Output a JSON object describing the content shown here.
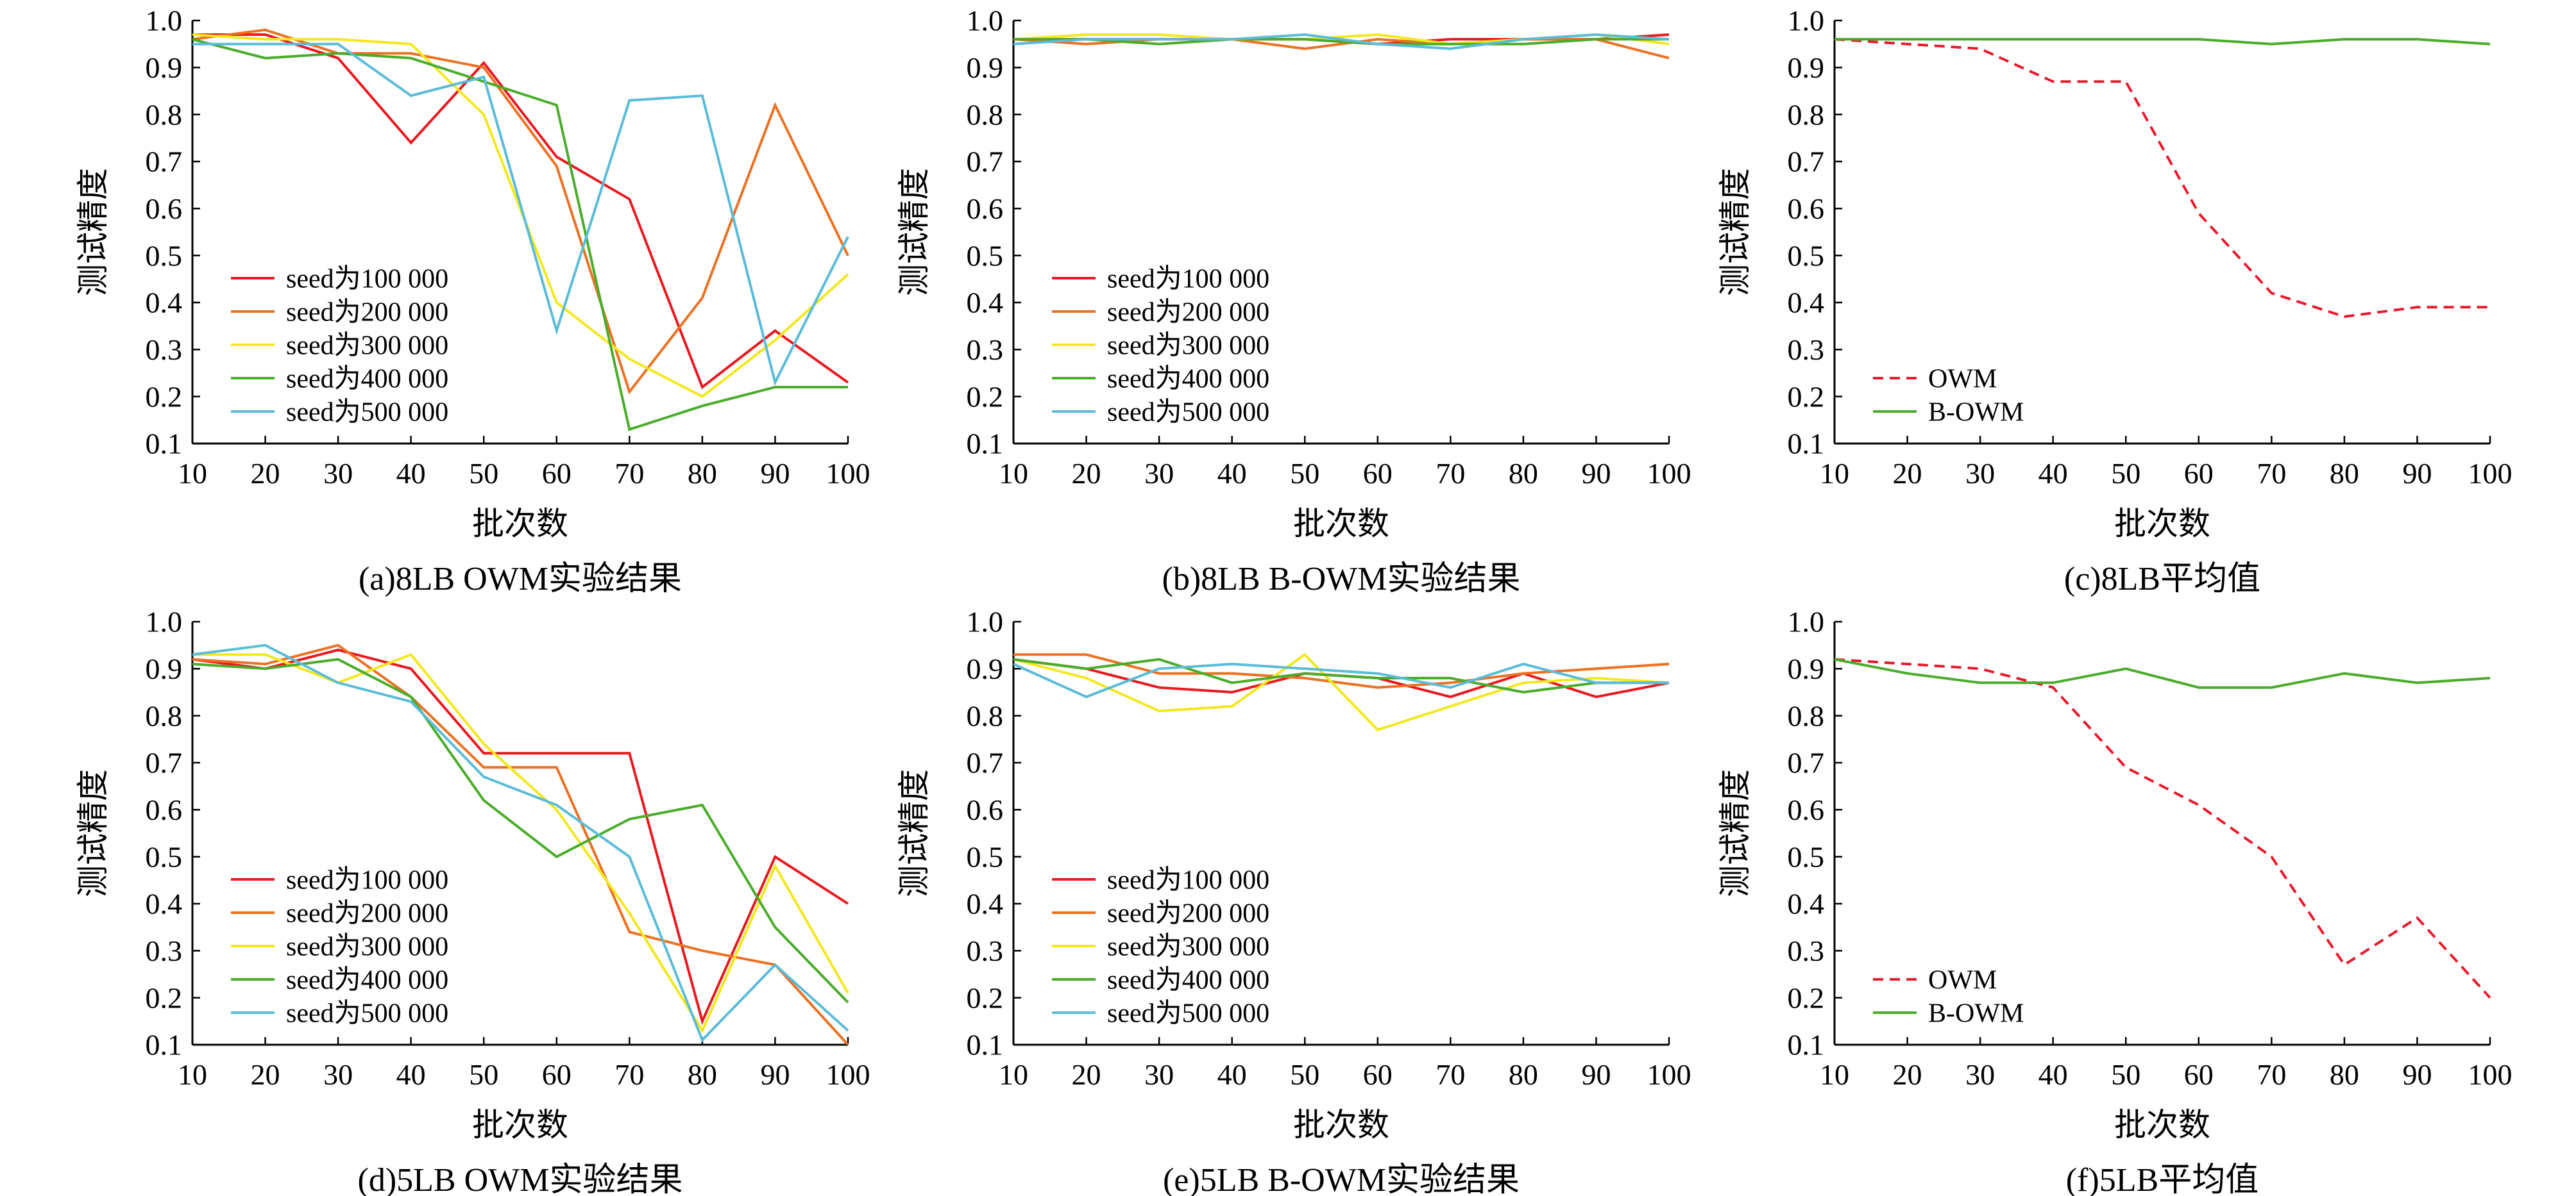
{
  "figure": {
    "y_axis_label": "测试精度",
    "x_axis_label": "批次数"
  },
  "colors": {
    "seed100": "#e8191f",
    "seed200": "#ec7122",
    "seed300": "#f3e81e",
    "seed400": "#4aac2b",
    "seed500": "#5bbcd8",
    "owm": "#e8192c",
    "bowm": "#4aac2b"
  },
  "chart_data": [
    {
      "id": "a",
      "type": "line",
      "caption": "(a)8LB OWM实验结果",
      "xlabel": "批次数",
      "ylabel": "测试精度",
      "x": [
        10,
        20,
        30,
        40,
        50,
        60,
        70,
        80,
        90,
        100
      ],
      "xlim": [
        10,
        100
      ],
      "ylim": [
        0.1,
        1.0
      ],
      "legend_position": "lower-left",
      "series": [
        {
          "name": "seed为100 000",
          "color_key": "seed100",
          "dashed": false,
          "values": [
            0.97,
            0.97,
            0.92,
            0.74,
            0.91,
            0.71,
            0.62,
            0.22,
            0.34,
            0.23
          ]
        },
        {
          "name": "seed为200 000",
          "color_key": "seed200",
          "dashed": false,
          "values": [
            0.96,
            0.98,
            0.93,
            0.93,
            0.9,
            0.69,
            0.21,
            0.41,
            0.82,
            0.5
          ]
        },
        {
          "name": "seed为300 000",
          "color_key": "seed300",
          "dashed": false,
          "values": [
            0.97,
            0.96,
            0.96,
            0.95,
            0.8,
            0.4,
            0.28,
            0.2,
            0.32,
            0.46
          ]
        },
        {
          "name": "seed为400 000",
          "color_key": "seed400",
          "dashed": false,
          "values": [
            0.96,
            0.92,
            0.93,
            0.92,
            0.87,
            0.82,
            0.13,
            0.18,
            0.22,
            0.22
          ]
        },
        {
          "name": "seed为500 000",
          "color_key": "seed500",
          "dashed": false,
          "values": [
            0.95,
            0.95,
            0.95,
            0.84,
            0.88,
            0.34,
            0.83,
            0.84,
            0.23,
            0.54
          ]
        }
      ]
    },
    {
      "id": "b",
      "type": "line",
      "caption": "(b)8LB B-OWM实验结果",
      "xlabel": "批次数",
      "ylabel": "测试精度",
      "x": [
        10,
        20,
        30,
        40,
        50,
        60,
        70,
        80,
        90,
        100
      ],
      "xlim": [
        10,
        100
      ],
      "ylim": [
        0.1,
        1.0
      ],
      "legend_position": "lower-left",
      "series": [
        {
          "name": "seed为100 000",
          "color_key": "seed100",
          "dashed": false,
          "values": [
            0.96,
            0.96,
            0.96,
            0.96,
            0.96,
            0.95,
            0.96,
            0.96,
            0.96,
            0.97
          ]
        },
        {
          "name": "seed为200 000",
          "color_key": "seed200",
          "dashed": false,
          "values": [
            0.96,
            0.95,
            0.96,
            0.96,
            0.94,
            0.96,
            0.95,
            0.96,
            0.96,
            0.92
          ]
        },
        {
          "name": "seed为300 000",
          "color_key": "seed300",
          "dashed": false,
          "values": [
            0.96,
            0.97,
            0.97,
            0.96,
            0.96,
            0.97,
            0.95,
            0.96,
            0.97,
            0.95
          ]
        },
        {
          "name": "seed为400 000",
          "color_key": "seed400",
          "dashed": false,
          "values": [
            0.96,
            0.96,
            0.95,
            0.96,
            0.96,
            0.95,
            0.95,
            0.95,
            0.96,
            0.96
          ]
        },
        {
          "name": "seed为500 000",
          "color_key": "seed500",
          "dashed": false,
          "values": [
            0.95,
            0.96,
            0.96,
            0.96,
            0.97,
            0.95,
            0.94,
            0.96,
            0.97,
            0.96
          ]
        }
      ]
    },
    {
      "id": "c",
      "type": "line",
      "caption": "(c)8LB平均值",
      "xlabel": "批次数",
      "ylabel": "测试精度",
      "x": [
        10,
        20,
        30,
        40,
        50,
        60,
        70,
        80,
        90,
        100
      ],
      "xlim": [
        10,
        100
      ],
      "ylim": [
        0.1,
        1.0
      ],
      "legend_position": "lower-left",
      "series": [
        {
          "name": "OWM",
          "color_key": "owm",
          "dashed": true,
          "values": [
            0.96,
            0.95,
            0.94,
            0.87,
            0.87,
            0.59,
            0.42,
            0.37,
            0.39,
            0.39
          ]
        },
        {
          "name": "B-OWM",
          "color_key": "bowm",
          "dashed": false,
          "values": [
            0.96,
            0.96,
            0.96,
            0.96,
            0.96,
            0.96,
            0.95,
            0.96,
            0.96,
            0.95
          ]
        }
      ]
    },
    {
      "id": "d",
      "type": "line",
      "caption": "(d)5LB OWM实验结果",
      "xlabel": "批次数",
      "ylabel": "测试精度",
      "x": [
        10,
        20,
        30,
        40,
        50,
        60,
        70,
        80,
        90,
        100
      ],
      "xlim": [
        10,
        100
      ],
      "ylim": [
        0.1,
        1.0
      ],
      "legend_position": "lower-left",
      "series": [
        {
          "name": "seed为100 000",
          "color_key": "seed100",
          "dashed": false,
          "values": [
            0.92,
            0.9,
            0.94,
            0.9,
            0.72,
            0.72,
            0.72,
            0.15,
            0.5,
            0.4
          ]
        },
        {
          "name": "seed为200 000",
          "color_key": "seed200",
          "dashed": false,
          "values": [
            0.92,
            0.91,
            0.95,
            0.84,
            0.69,
            0.69,
            0.34,
            0.3,
            0.27,
            0.1
          ]
        },
        {
          "name": "seed为300 000",
          "color_key": "seed300",
          "dashed": false,
          "values": [
            0.93,
            0.93,
            0.87,
            0.93,
            0.74,
            0.6,
            0.38,
            0.13,
            0.48,
            0.21
          ]
        },
        {
          "name": "seed为400 000",
          "color_key": "seed400",
          "dashed": false,
          "values": [
            0.91,
            0.9,
            0.92,
            0.84,
            0.62,
            0.5,
            0.58,
            0.61,
            0.35,
            0.19
          ]
        },
        {
          "name": "seed为500 000",
          "color_key": "seed500",
          "dashed": false,
          "values": [
            0.93,
            0.95,
            0.87,
            0.83,
            0.67,
            0.61,
            0.5,
            0.11,
            0.27,
            0.13
          ]
        }
      ]
    },
    {
      "id": "e",
      "type": "line",
      "caption": "(e)5LB B-OWM实验结果",
      "xlabel": "批次数",
      "ylabel": "测试精度",
      "x": [
        10,
        20,
        30,
        40,
        50,
        60,
        70,
        80,
        90,
        100
      ],
      "xlim": [
        10,
        100
      ],
      "ylim": [
        0.1,
        1.0
      ],
      "legend_position": "lower-left",
      "series": [
        {
          "name": "seed为100 000",
          "color_key": "seed100",
          "dashed": false,
          "values": [
            0.92,
            0.9,
            0.86,
            0.85,
            0.89,
            0.88,
            0.84,
            0.89,
            0.84,
            0.87
          ]
        },
        {
          "name": "seed为200 000",
          "color_key": "seed200",
          "dashed": false,
          "values": [
            0.93,
            0.93,
            0.89,
            0.89,
            0.88,
            0.86,
            0.87,
            0.89,
            0.9,
            0.91
          ]
        },
        {
          "name": "seed为300 000",
          "color_key": "seed300",
          "dashed": false,
          "values": [
            0.92,
            0.88,
            0.81,
            0.82,
            0.93,
            0.77,
            0.82,
            0.87,
            0.88,
            0.87
          ]
        },
        {
          "name": "seed为400 000",
          "color_key": "seed400",
          "dashed": false,
          "values": [
            0.92,
            0.9,
            0.92,
            0.87,
            0.89,
            0.88,
            0.88,
            0.85,
            0.87,
            0.87
          ]
        },
        {
          "name": "seed为500 000",
          "color_key": "seed500",
          "dashed": false,
          "values": [
            0.91,
            0.84,
            0.9,
            0.91,
            0.9,
            0.89,
            0.86,
            0.91,
            0.87,
            0.87
          ]
        }
      ]
    },
    {
      "id": "f",
      "type": "line",
      "caption": "(f)5LB平均值",
      "xlabel": "批次数",
      "ylabel": "测试精度",
      "x": [
        10,
        20,
        30,
        40,
        50,
        60,
        70,
        80,
        90,
        100
      ],
      "xlim": [
        10,
        100
      ],
      "ylim": [
        0.1,
        1.0
      ],
      "legend_position": "lower-left",
      "series": [
        {
          "name": "OWM",
          "color_key": "owm",
          "dashed": true,
          "values": [
            0.92,
            0.91,
            0.9,
            0.86,
            0.69,
            0.61,
            0.5,
            0.27,
            0.37,
            0.2
          ]
        },
        {
          "name": "B-OWM",
          "color_key": "bowm",
          "dashed": false,
          "values": [
            0.92,
            0.89,
            0.87,
            0.87,
            0.9,
            0.86,
            0.86,
            0.89,
            0.87,
            0.88
          ]
        }
      ]
    }
  ]
}
